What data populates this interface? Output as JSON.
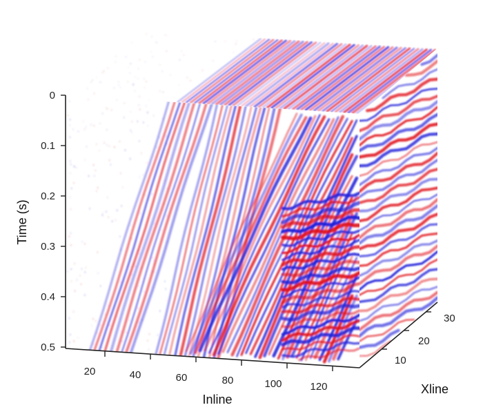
{
  "chart_data": {
    "type": "heatmap",
    "title": "",
    "view": "3D volume cube",
    "colormap": [
      "#1f1fd9",
      "#ffffff",
      "#e0101a"
    ],
    "x_axis": {
      "label": "Inline",
      "range": [
        1,
        135
      ],
      "ticks": [
        20,
        40,
        60,
        80,
        100,
        120
      ],
      "tick_labels": [
        "20",
        "40",
        "60",
        "80",
        "100",
        "120"
      ]
    },
    "y_axis": {
      "label": "Xline",
      "range": [
        1,
        35
      ],
      "ticks": [
        10,
        20,
        30
      ],
      "tick_labels": [
        "10",
        "20",
        "30"
      ]
    },
    "z_axis": {
      "label": "Time (s)",
      "range": [
        0,
        0.51
      ],
      "direction": "reversed",
      "ticks": [
        0,
        0.1,
        0.2,
        0.3,
        0.4,
        0.5
      ],
      "tick_labels": [
        "0",
        "0.1",
        "0.2",
        "0.3",
        "0.4",
        "0.5"
      ]
    },
    "events": [
      {
        "type": "direct_arrival",
        "inline_at_t0": 48,
        "inline_at_t05": 12
      },
      {
        "type": "linear_event",
        "inline_at_t0": 70,
        "inline_at_t05": 42
      },
      {
        "type": "refraction_zone",
        "inline_start": 78,
        "inline_end": 135
      },
      {
        "type": "strong_reflections",
        "time_start": 0.2,
        "time_end": 0.5,
        "inline_start": 100
      }
    ],
    "grid": false,
    "legend": "none"
  }
}
